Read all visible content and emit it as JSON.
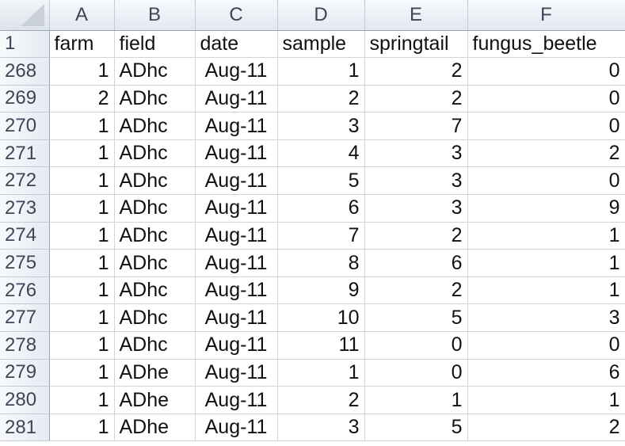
{
  "spreadsheet": {
    "column_letters": [
      "A",
      "B",
      "C",
      "D",
      "E",
      "F"
    ],
    "header_row_number": "1",
    "headers": [
      "farm",
      "field",
      "date",
      "sample",
      "springtail",
      "fungus_beetle"
    ],
    "rows": [
      {
        "num": "268",
        "cells": [
          "1",
          "ADhc",
          "Aug-11",
          "1",
          "2",
          "0"
        ]
      },
      {
        "num": "269",
        "cells": [
          "2",
          "ADhc",
          "Aug-11",
          "2",
          "2",
          "0"
        ]
      },
      {
        "num": "270",
        "cells": [
          "1",
          "ADhc",
          "Aug-11",
          "3",
          "7",
          "0"
        ]
      },
      {
        "num": "271",
        "cells": [
          "1",
          "ADhc",
          "Aug-11",
          "4",
          "3",
          "2"
        ]
      },
      {
        "num": "272",
        "cells": [
          "1",
          "ADhc",
          "Aug-11",
          "5",
          "3",
          "0"
        ]
      },
      {
        "num": "273",
        "cells": [
          "1",
          "ADhc",
          "Aug-11",
          "6",
          "3",
          "9"
        ]
      },
      {
        "num": "274",
        "cells": [
          "1",
          "ADhc",
          "Aug-11",
          "7",
          "2",
          "1"
        ]
      },
      {
        "num": "275",
        "cells": [
          "1",
          "ADhc",
          "Aug-11",
          "8",
          "6",
          "1"
        ]
      },
      {
        "num": "276",
        "cells": [
          "1",
          "ADhc",
          "Aug-11",
          "9",
          "2",
          "1"
        ]
      },
      {
        "num": "277",
        "cells": [
          "1",
          "ADhc",
          "Aug-11",
          "10",
          "5",
          "3"
        ]
      },
      {
        "num": "278",
        "cells": [
          "1",
          "ADhc",
          "Aug-11",
          "11",
          "0",
          "0"
        ]
      },
      {
        "num": "279",
        "cells": [
          "1",
          "ADhe",
          "Aug-11",
          "1",
          "0",
          "6"
        ]
      },
      {
        "num": "280",
        "cells": [
          "1",
          "ADhe",
          "Aug-11",
          "2",
          "1",
          "1"
        ]
      },
      {
        "num": "281",
        "cells": [
          "1",
          "ADhe",
          "Aug-11",
          "3",
          "5",
          "2"
        ]
      }
    ]
  }
}
